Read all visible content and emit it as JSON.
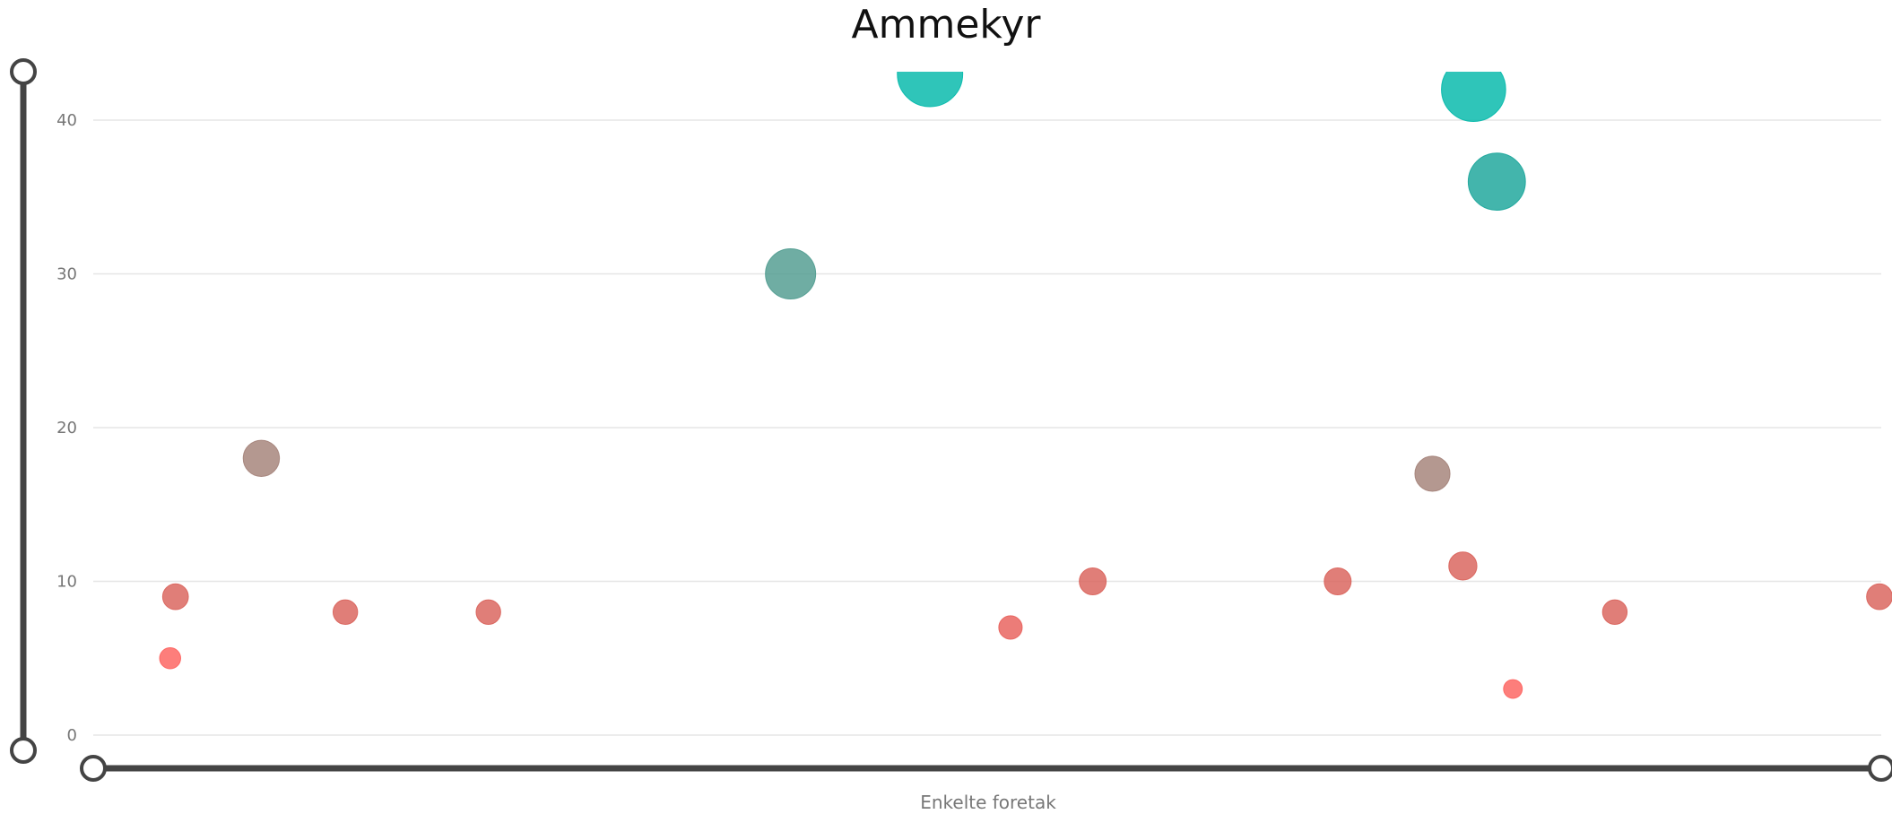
{
  "chart_data": {
    "type": "scatter",
    "title": "Ammekyr",
    "xlabel": "Enkelte foretak",
    "ylabel": "",
    "ylim": [
      0,
      43
    ],
    "y_ticks": [
      "0",
      "10",
      "20",
      "30",
      "40"
    ],
    "grid": true,
    "x_range": [
      0,
      100
    ],
    "points": [
      {
        "x": 4.3,
        "y": 5,
        "size": 5,
        "color": "#fd625e"
      },
      {
        "x": 4.6,
        "y": 9,
        "size": 9,
        "color": "#d9625a"
      },
      {
        "x": 9.4,
        "y": 18,
        "size": 18,
        "color": "#a38178"
      },
      {
        "x": 14.1,
        "y": 8,
        "size": 8,
        "color": "#d9625a"
      },
      {
        "x": 22.1,
        "y": 8,
        "size": 8,
        "color": "#d9625a"
      },
      {
        "x": 39.0,
        "y": 30,
        "size": 30,
        "color": "#4f9b8f"
      },
      {
        "x": 46.8,
        "y": 43,
        "size": 43,
        "color": "#01b8aa"
      },
      {
        "x": 51.3,
        "y": 7,
        "size": 7,
        "color": "#e85f5a"
      },
      {
        "x": 55.9,
        "y": 10,
        "size": 10,
        "color": "#d9625a"
      },
      {
        "x": 69.6,
        "y": 10,
        "size": 10,
        "color": "#d9625a"
      },
      {
        "x": 74.9,
        "y": 17,
        "size": 17,
        "color": "#a38178"
      },
      {
        "x": 77.2,
        "y": 42,
        "size": 42,
        "color": "#01b8aa"
      },
      {
        "x": 76.6,
        "y": 11,
        "size": 11,
        "color": "#d9625a"
      },
      {
        "x": 78.5,
        "y": 36,
        "size": 36,
        "color": "#1aa59a"
      },
      {
        "x": 79.4,
        "y": 3,
        "size": 3,
        "color": "#fd625e"
      },
      {
        "x": 85.1,
        "y": 8,
        "size": 8,
        "color": "#d9625a"
      },
      {
        "x": 99.9,
        "y": 9,
        "size": 9,
        "color": "#d9625a"
      }
    ]
  },
  "colors": {
    "grid": "#e6e6e6",
    "slider": "#444444"
  }
}
